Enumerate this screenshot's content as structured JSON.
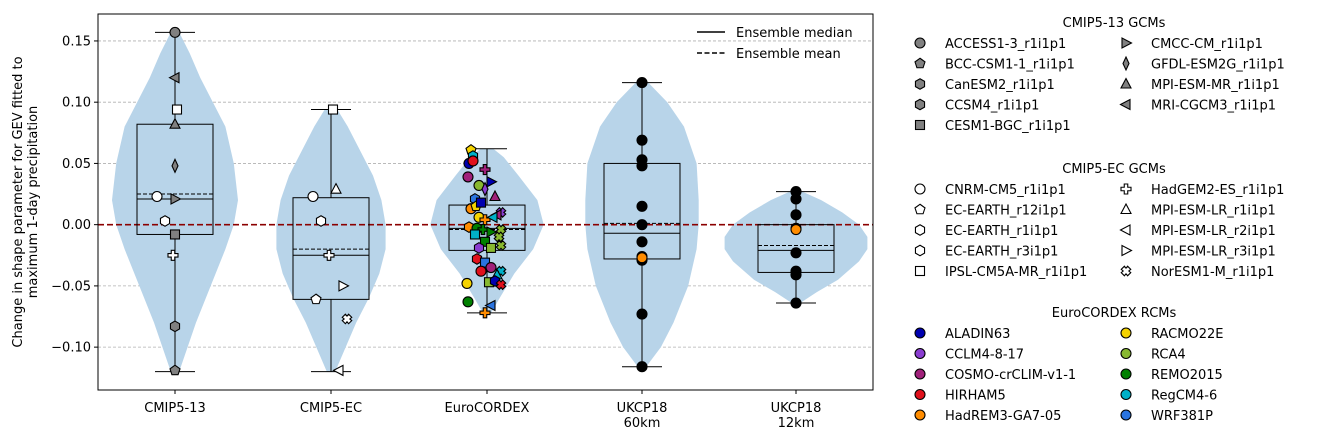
{
  "chart_data": {
    "type": "violin",
    "ylabel_line1": "Change in shape parameter for GEV fitted to",
    "ylabel_line2": "maximum 1-day precipitation",
    "ylim": [
      -0.135,
      0.172
    ],
    "yticks": [
      -0.1,
      -0.05,
      0.0,
      0.05,
      0.1,
      0.15
    ],
    "ytick_labels": [
      "−0.10",
      "−0.05",
      "0.00",
      "0.05",
      "0.10",
      "0.15"
    ],
    "grid": "horizontal dashed",
    "zero_line_color": "#8b0000",
    "violin_color": "#b8d4e9",
    "categories": [
      {
        "line1": "CMIP5-13",
        "line2": ""
      },
      {
        "line1": "CMIP5-EC",
        "line2": ""
      },
      {
        "line1": "EuroCORDEX",
        "line2": ""
      },
      {
        "line1": "UKCP18",
        "line2": "60km"
      },
      {
        "line1": "UKCP18",
        "line2": "12km"
      }
    ],
    "boxes": [
      {
        "q1": -0.008,
        "median": 0.021,
        "mean": 0.025,
        "q3": 0.082,
        "min": -0.12,
        "max": 0.157
      },
      {
        "q1": -0.061,
        "median": -0.025,
        "mean": -0.02,
        "q3": 0.022,
        "min": -0.12,
        "max": 0.094
      },
      {
        "q1": -0.021,
        "median": -0.003,
        "mean": -0.004,
        "q3": 0.016,
        "min": -0.072,
        "max": 0.062
      },
      {
        "q1": -0.028,
        "median": -0.007,
        "mean": 0.001,
        "q3": 0.05,
        "min": -0.116,
        "max": 0.116
      },
      {
        "q1": -0.039,
        "median": -0.021,
        "mean": -0.017,
        "q3": 0.0,
        "min": -0.064,
        "max": 0.027
      }
    ],
    "violins": [
      [
        [
          -0.12,
          2
        ],
        [
          -0.1,
          6
        ],
        [
          -0.08,
          10
        ],
        [
          -0.05,
          17
        ],
        [
          -0.02,
          24
        ],
        [
          0.0,
          28
        ],
        [
          0.02,
          30
        ],
        [
          0.05,
          28
        ],
        [
          0.08,
          24
        ],
        [
          0.1,
          18
        ],
        [
          0.12,
          12
        ],
        [
          0.14,
          7
        ],
        [
          0.157,
          2
        ]
      ],
      [
        [
          -0.12,
          2
        ],
        [
          -0.1,
          7
        ],
        [
          -0.08,
          12
        ],
        [
          -0.06,
          18
        ],
        [
          -0.04,
          23
        ],
        [
          -0.02,
          26
        ],
        [
          0.0,
          26
        ],
        [
          0.02,
          24
        ],
        [
          0.04,
          20
        ],
        [
          0.06,
          14
        ],
        [
          0.08,
          8
        ],
        [
          0.094,
          3
        ]
      ],
      [
        [
          -0.072,
          2
        ],
        [
          -0.06,
          6
        ],
        [
          -0.04,
          13
        ],
        [
          -0.02,
          22
        ],
        [
          0.0,
          27
        ],
        [
          0.02,
          24
        ],
        [
          0.04,
          15
        ],
        [
          0.055,
          8
        ],
        [
          0.062,
          3
        ]
      ],
      [
        [
          -0.116,
          2
        ],
        [
          -0.1,
          9
        ],
        [
          -0.08,
          15
        ],
        [
          -0.05,
          22
        ],
        [
          -0.02,
          26
        ],
        [
          0.0,
          27
        ],
        [
          0.02,
          27
        ],
        [
          0.05,
          26
        ],
        [
          0.08,
          20
        ],
        [
          0.1,
          12
        ],
        [
          0.116,
          3
        ]
      ],
      [
        [
          -0.064,
          2
        ],
        [
          -0.055,
          10
        ],
        [
          -0.045,
          20
        ],
        [
          -0.03,
          30
        ],
        [
          -0.02,
          34
        ],
        [
          -0.01,
          34
        ],
        [
          0.0,
          30
        ],
        [
          0.01,
          22
        ],
        [
          0.02,
          12
        ],
        [
          0.027,
          3
        ]
      ]
    ],
    "points": [
      {
        "g": 0,
        "dx": 0,
        "y": 0.157,
        "m": "circle",
        "c": "#808080"
      },
      {
        "g": 0,
        "dx": 0,
        "y": 0.12,
        "m": "tri_left",
        "c": "#808080"
      },
      {
        "g": 0,
        "dx": 2,
        "y": 0.094,
        "m": "square",
        "c": "#ffffff"
      },
      {
        "g": 0,
        "dx": 0,
        "y": 0.082,
        "m": "tri_up",
        "c": "#808080"
      },
      {
        "g": 0,
        "dx": 0,
        "y": 0.048,
        "m": "diamond",
        "c": "#808080"
      },
      {
        "g": 0,
        "dx": -18,
        "y": 0.023,
        "m": "circle",
        "c": "#ffffff"
      },
      {
        "g": 0,
        "dx": 0,
        "y": 0.021,
        "m": "tri_right",
        "c": "#808080"
      },
      {
        "g": 0,
        "dx": -10,
        "y": 0.003,
        "m": "hexagon",
        "c": "#ffffff"
      },
      {
        "g": 0,
        "dx": 0,
        "y": -0.008,
        "m": "square",
        "c": "#808080"
      },
      {
        "g": 0,
        "dx": -2,
        "y": -0.025,
        "m": "plus",
        "c": "#ffffff"
      },
      {
        "g": 0,
        "dx": 0,
        "y": -0.083,
        "m": "hexagon",
        "c": "#808080"
      },
      {
        "g": 0,
        "dx": 0,
        "y": -0.119,
        "m": "pentagon",
        "c": "#808080"
      },
      {
        "g": 1,
        "dx": 2,
        "y": 0.094,
        "m": "square",
        "c": "#ffffff"
      },
      {
        "g": 1,
        "dx": 5,
        "y": 0.029,
        "m": "tri_up",
        "c": "#ffffff"
      },
      {
        "g": 1,
        "dx": -18,
        "y": 0.023,
        "m": "circle",
        "c": "#ffffff"
      },
      {
        "g": 1,
        "dx": -10,
        "y": 0.003,
        "m": "hexagon",
        "c": "#ffffff"
      },
      {
        "g": 1,
        "dx": -2,
        "y": -0.025,
        "m": "plus",
        "c": "#ffffff"
      },
      {
        "g": 1,
        "dx": 12,
        "y": -0.05,
        "m": "tri_right",
        "c": "#ffffff"
      },
      {
        "g": 1,
        "dx": -15,
        "y": -0.061,
        "m": "pentagon",
        "c": "#ffffff"
      },
      {
        "g": 1,
        "dx": 16,
        "y": -0.077,
        "m": "cross",
        "c": "#ffffff"
      },
      {
        "g": 1,
        "dx": 8,
        "y": -0.119,
        "m": "tri_left",
        "c": "#ffffff"
      },
      {
        "g": 2,
        "dx": -16,
        "y": 0.061,
        "m": "pentagon",
        "c": "#f5d300"
      },
      {
        "g": 2,
        "dx": -14,
        "y": 0.056,
        "m": "hexagon",
        "c": "#00b0c8"
      },
      {
        "g": 2,
        "dx": -18,
        "y": 0.05,
        "m": "circle",
        "c": "#0000b0"
      },
      {
        "g": 2,
        "dx": -14,
        "y": 0.052,
        "m": "circle",
        "c": "#e0101c"
      },
      {
        "g": 2,
        "dx": -2,
        "y": 0.045,
        "m": "plus",
        "c": "#a0207a"
      },
      {
        "g": 2,
        "dx": -19,
        "y": 0.039,
        "m": "circle",
        "c": "#a0207a"
      },
      {
        "g": 2,
        "dx": 4,
        "y": 0.035,
        "m": "tri_right",
        "c": "#0000b0"
      },
      {
        "g": 2,
        "dx": -8,
        "y": 0.032,
        "m": "circle",
        "c": "#88b830"
      },
      {
        "g": 2,
        "dx": -2,
        "y": 0.029,
        "m": "diamond",
        "c": "#8a3dd0"
      },
      {
        "g": 2,
        "dx": 8,
        "y": 0.023,
        "m": "tri_up",
        "c": "#a0207a"
      },
      {
        "g": 2,
        "dx": -12,
        "y": 0.021,
        "m": "hexagon",
        "c": "#2a74e0"
      },
      {
        "g": 2,
        "dx": -16,
        "y": 0.013,
        "m": "circle",
        "c": "#ff8c00"
      },
      {
        "g": 2,
        "dx": -11,
        "y": 0.015,
        "m": "pentagon",
        "c": "#f5d300"
      },
      {
        "g": 2,
        "dx": -6,
        "y": 0.018,
        "m": "square",
        "c": "#0000b0"
      },
      {
        "g": 2,
        "dx": 14,
        "y": 0.01,
        "m": "cross",
        "c": "#8a3dd0"
      },
      {
        "g": 2,
        "dx": 10,
        "y": 0.008,
        "m": "tri_left",
        "c": "#a0207a"
      },
      {
        "g": 2,
        "dx": -8,
        "y": 0.006,
        "m": "circle",
        "c": "#f5d300"
      },
      {
        "g": 2,
        "dx": -2,
        "y": 0.004,
        "m": "plus",
        "c": "#ff8c00"
      },
      {
        "g": 2,
        "dx": 6,
        "y": 0.006,
        "m": "tri_left",
        "c": "#00b0c8"
      },
      {
        "g": 2,
        "dx": -18,
        "y": -0.002,
        "m": "hexagon",
        "c": "#ff8c00"
      },
      {
        "g": 2,
        "dx": -10,
        "y": -0.003,
        "m": "circle",
        "c": "#008000"
      },
      {
        "g": 2,
        "dx": -4,
        "y": -0.004,
        "m": "plus",
        "c": "#008000"
      },
      {
        "g": 2,
        "dx": 14,
        "y": -0.004,
        "m": "cross",
        "c": "#88b830"
      },
      {
        "g": 2,
        "dx": 4,
        "y": -0.006,
        "m": "tri_right",
        "c": "#008000"
      },
      {
        "g": 2,
        "dx": -12,
        "y": -0.008,
        "m": "square",
        "c": "#00b0c8"
      },
      {
        "g": 2,
        "dx": 12,
        "y": -0.01,
        "m": "cross",
        "c": "#88b830"
      },
      {
        "g": 2,
        "dx": -2,
        "y": -0.014,
        "m": "square",
        "c": "#008000"
      },
      {
        "g": 2,
        "dx": 14,
        "y": -0.017,
        "m": "cross",
        "c": "#88b830"
      },
      {
        "g": 2,
        "dx": 4,
        "y": -0.019,
        "m": "square",
        "c": "#88b830"
      },
      {
        "g": 2,
        "dx": -8,
        "y": -0.019,
        "m": "hexagon",
        "c": "#8a3dd0"
      },
      {
        "g": 2,
        "dx": -10,
        "y": -0.028,
        "m": "hexagon",
        "c": "#e0101c"
      },
      {
        "g": 2,
        "dx": -2,
        "y": -0.031,
        "m": "square",
        "c": "#2a74e0"
      },
      {
        "g": 2,
        "dx": 4,
        "y": -0.035,
        "m": "circle",
        "c": "#a0207a"
      },
      {
        "g": 2,
        "dx": -6,
        "y": -0.038,
        "m": "circle",
        "c": "#e0101c"
      },
      {
        "g": 2,
        "dx": 14,
        "y": -0.038,
        "m": "cross",
        "c": "#00b0c8"
      },
      {
        "g": 2,
        "dx": 10,
        "y": -0.041,
        "m": "tri_up",
        "c": "#00b0c8"
      },
      {
        "g": 2,
        "dx": -20,
        "y": -0.048,
        "m": "circle",
        "c": "#f5d300"
      },
      {
        "g": 2,
        "dx": 2,
        "y": -0.047,
        "m": "square",
        "c": "#88b830"
      },
      {
        "g": 2,
        "dx": 8,
        "y": -0.046,
        "m": "hexagon",
        "c": "#0000b0"
      },
      {
        "g": 2,
        "dx": 14,
        "y": -0.049,
        "m": "cross",
        "c": "#e0101c"
      },
      {
        "g": 2,
        "dx": -19,
        "y": -0.063,
        "m": "circle",
        "c": "#008000"
      },
      {
        "g": 2,
        "dx": 4,
        "y": -0.066,
        "m": "tri_left",
        "c": "#2a74e0"
      },
      {
        "g": 2,
        "dx": -2,
        "y": -0.072,
        "m": "plus",
        "c": "#ff8c00"
      },
      {
        "g": 3,
        "dx": 0,
        "y": 0.116,
        "m": "circle",
        "c": "#000000"
      },
      {
        "g": 3,
        "dx": 0,
        "y": 0.069,
        "m": "circle",
        "c": "#000000"
      },
      {
        "g": 3,
        "dx": 0,
        "y": 0.053,
        "m": "circle",
        "c": "#000000"
      },
      {
        "g": 3,
        "dx": 0,
        "y": 0.048,
        "m": "circle",
        "c": "#000000"
      },
      {
        "g": 3,
        "dx": 0,
        "y": 0.015,
        "m": "circle",
        "c": "#000000"
      },
      {
        "g": 3,
        "dx": 0,
        "y": 0.0,
        "m": "circle",
        "c": "#000000"
      },
      {
        "g": 3,
        "dx": 0,
        "y": -0.014,
        "m": "circle",
        "c": "#000000"
      },
      {
        "g": 3,
        "dx": 0,
        "y": -0.026,
        "m": "circle",
        "c": "#000000"
      },
      {
        "g": 3,
        "dx": 0,
        "y": -0.029,
        "m": "circle",
        "c": "#000000"
      },
      {
        "g": 3,
        "dx": 0,
        "y": -0.027,
        "m": "circle",
        "c": "#ff8c00"
      },
      {
        "g": 3,
        "dx": 0,
        "y": -0.073,
        "m": "circle",
        "c": "#000000"
      },
      {
        "g": 3,
        "dx": 0,
        "y": -0.116,
        "m": "circle",
        "c": "#000000"
      },
      {
        "g": 4,
        "dx": 0,
        "y": 0.027,
        "m": "circle",
        "c": "#000000"
      },
      {
        "g": 4,
        "dx": 0,
        "y": 0.021,
        "m": "circle",
        "c": "#000000"
      },
      {
        "g": 4,
        "dx": 0,
        "y": 0.008,
        "m": "circle",
        "c": "#000000"
      },
      {
        "g": 4,
        "dx": 0,
        "y": -0.003,
        "m": "circle",
        "c": "#000000"
      },
      {
        "g": 4,
        "dx": 0,
        "y": -0.004,
        "m": "circle",
        "c": "#ff8c00"
      },
      {
        "g": 4,
        "dx": 0,
        "y": -0.023,
        "m": "circle",
        "c": "#000000"
      },
      {
        "g": 4,
        "dx": 0,
        "y": -0.038,
        "m": "circle",
        "c": "#000000"
      },
      {
        "g": 4,
        "dx": 0,
        "y": -0.041,
        "m": "circle",
        "c": "#000000"
      },
      {
        "g": 4,
        "dx": 0,
        "y": -0.064,
        "m": "circle",
        "c": "#000000"
      }
    ],
    "legend_lines": [
      {
        "label": "Ensemble median",
        "style": "solid"
      },
      {
        "label": "Ensemble mean",
        "style": "dashed"
      }
    ],
    "legend_groups": [
      {
        "title": "CMIP5-13 GCMs",
        "col1": [
          {
            "label": "ACCESS1-3_r1i1p1",
            "m": "circle",
            "c": "#808080"
          },
          {
            "label": "BCC-CSM1-1_r1i1p1",
            "m": "pentagon",
            "c": "#808080"
          },
          {
            "label": "CanESM2_r1i1p1",
            "m": "hexagon",
            "c": "#808080"
          },
          {
            "label": "CCSM4_r1i1p1",
            "m": "hexagon",
            "c": "#808080"
          },
          {
            "label": "CESM1-BGC_r1i1p1",
            "m": "square",
            "c": "#808080"
          }
        ],
        "col2": [
          {
            "label": "CMCC-CM_r1i1p1",
            "m": "tri_right",
            "c": "#808080"
          },
          {
            "label": "GFDL-ESM2G_r1i1p1",
            "m": "diamond",
            "c": "#808080"
          },
          {
            "label": "MPI-ESM-MR_r1i1p1",
            "m": "tri_up",
            "c": "#808080"
          },
          {
            "label": "MRI-CGCM3_r1i1p1",
            "m": "tri_left",
            "c": "#808080"
          }
        ]
      },
      {
        "title": "CMIP5-EC GCMs",
        "col1": [
          {
            "label": "CNRM-CM5_r1i1p1",
            "m": "circle",
            "c": "#ffffff"
          },
          {
            "label": "EC-EARTH_r12i1p1",
            "m": "pentagon",
            "c": "#ffffff"
          },
          {
            "label": "EC-EARTH_r1i1p1",
            "m": "hexagon",
            "c": "#ffffff"
          },
          {
            "label": "EC-EARTH_r3i1p1",
            "m": "hexagon",
            "c": "#ffffff"
          },
          {
            "label": "IPSL-CM5A-MR_r1i1p1",
            "m": "square",
            "c": "#ffffff"
          }
        ],
        "col2": [
          {
            "label": "HadGEM2-ES_r1i1p1",
            "m": "plus",
            "c": "#ffffff"
          },
          {
            "label": "MPI-ESM-LR_r1i1p1",
            "m": "tri_up",
            "c": "#ffffff"
          },
          {
            "label": "MPI-ESM-LR_r2i1p1",
            "m": "tri_left",
            "c": "#ffffff"
          },
          {
            "label": "MPI-ESM-LR_r3i1p1",
            "m": "tri_right",
            "c": "#ffffff"
          },
          {
            "label": "NorESM1-M_r1i1p1",
            "m": "cross",
            "c": "#ffffff"
          }
        ]
      },
      {
        "title": "EuroCORDEX RCMs",
        "col1": [
          {
            "label": "ALADIN63",
            "m": "circle",
            "c": "#0000b0"
          },
          {
            "label": "CCLM4-8-17",
            "m": "circle",
            "c": "#8a3dd0"
          },
          {
            "label": "COSMO-crCLIM-v1-1",
            "m": "circle",
            "c": "#a0207a"
          },
          {
            "label": "HIRHAM5",
            "m": "circle",
            "c": "#e0101c"
          },
          {
            "label": "HadREM3-GA7-05",
            "m": "circle",
            "c": "#ff8c00"
          }
        ],
        "col2": [
          {
            "label": "RACMO22E",
            "m": "circle",
            "c": "#f5d300"
          },
          {
            "label": "RCA4",
            "m": "circle",
            "c": "#88b830"
          },
          {
            "label": "REMO2015",
            "m": "circle",
            "c": "#008000"
          },
          {
            "label": "RegCM4-6",
            "m": "circle",
            "c": "#00b0c8"
          },
          {
            "label": "WRF381P",
            "m": "circle",
            "c": "#2a74e0"
          }
        ]
      }
    ]
  }
}
